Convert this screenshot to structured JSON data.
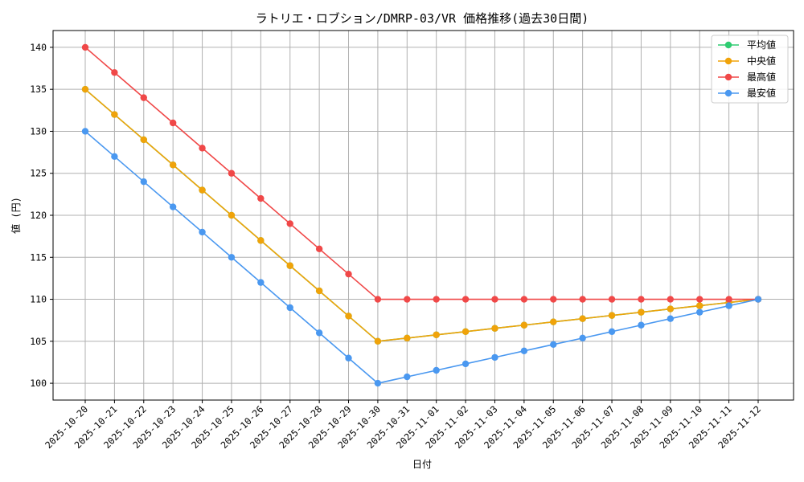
{
  "chart_data": {
    "type": "line",
    "title": "ラトリエ・ロブション/DMRP-03/VR 価格推移(過去30日間)",
    "xlabel": "日付",
    "ylabel": "値 (円)",
    "ylim": [
      98,
      142
    ],
    "yticks": [
      100,
      105,
      110,
      115,
      120,
      125,
      130,
      135,
      140
    ],
    "grid": true,
    "legend_position": "top-right",
    "categories": [
      "2025-10-20",
      "2025-10-21",
      "2025-10-22",
      "2025-10-23",
      "2025-10-24",
      "2025-10-25",
      "2025-10-26",
      "2025-10-27",
      "2025-10-28",
      "2025-10-29",
      "2025-10-30",
      "2025-10-31",
      "2025-11-01",
      "2025-11-02",
      "2025-11-03",
      "2025-11-04",
      "2025-11-05",
      "2025-11-06",
      "2025-11-07",
      "2025-11-08",
      "2025-11-09",
      "2025-11-10",
      "2025-11-11",
      "2025-11-12"
    ],
    "series": [
      {
        "name": "平均値",
        "color": "#2ecc71",
        "values": [
          135,
          132,
          129,
          126,
          123,
          120,
          117,
          114,
          111,
          108,
          105,
          105.38,
          105.77,
          106.15,
          106.54,
          106.92,
          107.31,
          107.69,
          108.08,
          108.46,
          108.85,
          109.23,
          109.62,
          110
        ]
      },
      {
        "name": "中央値",
        "color": "#f0a30a",
        "values": [
          135,
          132,
          129,
          126,
          123,
          120,
          117,
          114,
          111,
          108,
          105,
          105.38,
          105.77,
          106.15,
          106.54,
          106.92,
          107.31,
          107.69,
          108.08,
          108.46,
          108.85,
          109.23,
          109.62,
          110
        ]
      },
      {
        "name": "最高値",
        "color": "#f04848",
        "values": [
          140,
          137,
          134,
          131,
          128,
          125,
          122,
          119,
          116,
          113,
          110,
          110,
          110,
          110,
          110,
          110,
          110,
          110,
          110,
          110,
          110,
          110,
          110,
          110
        ]
      },
      {
        "name": "最安値",
        "color": "#4a98f0",
        "values": [
          130,
          127,
          124,
          121,
          118,
          115,
          112,
          109,
          106,
          103,
          100,
          100.77,
          101.54,
          102.31,
          103.08,
          103.85,
          104.62,
          105.38,
          106.15,
          106.92,
          107.69,
          108.46,
          109.23,
          110
        ]
      }
    ]
  }
}
